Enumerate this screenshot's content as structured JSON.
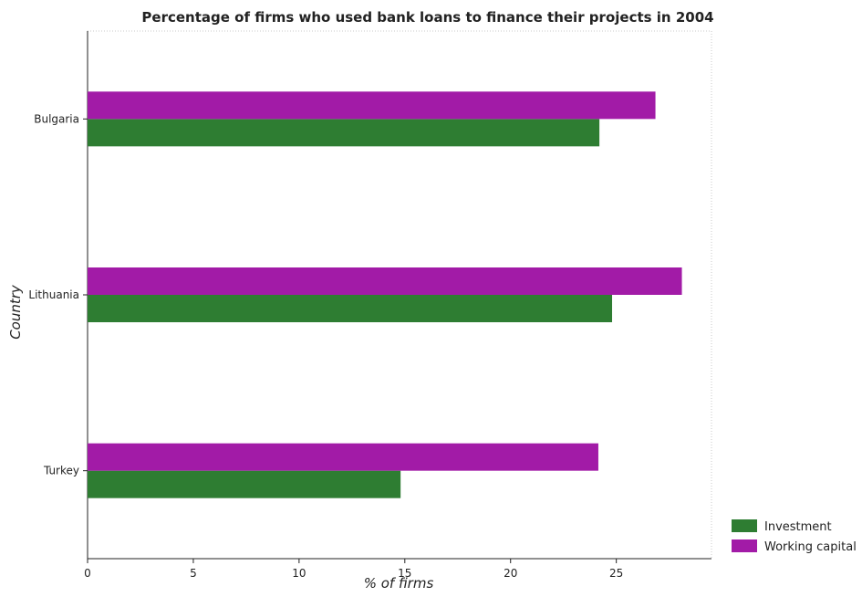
{
  "chart_data": {
    "type": "bar",
    "orientation": "horizontal",
    "title": "Percentage of firms who used bank loans to finance their projects in 2004",
    "xlabel": "% of firms",
    "ylabel": "Country",
    "categories": [
      "Bulgaria",
      "Lithuania",
      "Turkey"
    ],
    "series": [
      {
        "name": "Investment",
        "values": [
          24.2,
          24.8,
          14.8
        ],
        "color": "#2e7d32"
      },
      {
        "name": "Working capital",
        "values": [
          26.85,
          28.1,
          24.15
        ],
        "color": "#a21ba7"
      }
    ],
    "xlim": [
      0,
      29.5
    ],
    "xticks": [
      0,
      5,
      10,
      15,
      20,
      25
    ],
    "grid": false,
    "legend_position": "bottom-right"
  }
}
